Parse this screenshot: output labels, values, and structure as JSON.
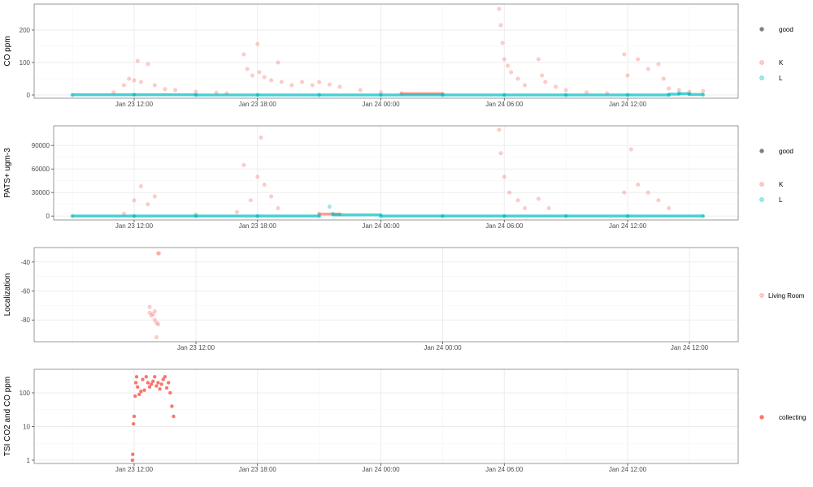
{
  "chart_data": [
    {
      "type": "scatter",
      "ylabel": "CO ppm",
      "x_ticks": [
        "Jan 23 12:00",
        "Jan 23 18:00",
        "Jan 24 00:00",
        "Jan 24 06:00",
        "Jan 24 12:00"
      ],
      "y_ticks": [
        "0",
        "100",
        "200"
      ],
      "ylim": [
        -10,
        280
      ],
      "legend": [
        {
          "label": "good",
          "color": "#7f7f7f"
        },
        {
          "label": "K",
          "color": "#F8766D"
        },
        {
          "label": "L",
          "color": "#00BFC4"
        }
      ],
      "series": [
        {
          "name": "K",
          "color": "#F8766D",
          "points": [
            [
              "Jan 23 11:00",
              8
            ],
            [
              "Jan 23 11:30",
              30
            ],
            [
              "Jan 23 11:45",
              50
            ],
            [
              "Jan 23 12:00",
              45
            ],
            [
              "Jan 23 12:10",
              105
            ],
            [
              "Jan 23 12:20",
              40
            ],
            [
              "Jan 23 12:40",
              95
            ],
            [
              "Jan 23 13:00",
              30
            ],
            [
              "Jan 23 13:30",
              18
            ],
            [
              "Jan 23 14:00",
              15
            ],
            [
              "Jan 23 15:00",
              10
            ],
            [
              "Jan 23 16:00",
              7
            ],
            [
              "Jan 23 16:30",
              5
            ],
            [
              "Jan 23 17:20",
              125
            ],
            [
              "Jan 23 17:30",
              80
            ],
            [
              "Jan 23 17:45",
              60
            ],
            [
              "Jan 23 18:00",
              157
            ],
            [
              "Jan 23 18:05",
              70
            ],
            [
              "Jan 23 18:20",
              55
            ],
            [
              "Jan 23 18:40",
              45
            ],
            [
              "Jan 23 19:00",
              100
            ],
            [
              "Jan 23 19:10",
              40
            ],
            [
              "Jan 23 19:40",
              30
            ],
            [
              "Jan 23 20:10",
              40
            ],
            [
              "Jan 23 20:40",
              30
            ],
            [
              "Jan 23 21:00",
              40
            ],
            [
              "Jan 23 21:30",
              32
            ],
            [
              "Jan 23 22:00",
              25
            ],
            [
              "Jan 23 23:00",
              15
            ],
            [
              "Jan 24 00:00",
              8
            ],
            [
              "Jan 24 01:00",
              5
            ],
            [
              "Jan 24 03:00",
              3
            ],
            [
              "Jan 24 05:45",
              265
            ],
            [
              "Jan 24 05:50",
              215
            ],
            [
              "Jan 24 05:55",
              160
            ],
            [
              "Jan 24 06:00",
              110
            ],
            [
              "Jan 24 06:10",
              90
            ],
            [
              "Jan 24 06:20",
              70
            ],
            [
              "Jan 24 06:40",
              50
            ],
            [
              "Jan 24 07:00",
              30
            ],
            [
              "Jan 24 07:40",
              110
            ],
            [
              "Jan 24 07:50",
              60
            ],
            [
              "Jan 24 08:00",
              40
            ],
            [
              "Jan 24 08:30",
              25
            ],
            [
              "Jan 24 09:00",
              15
            ],
            [
              "Jan 24 10:00",
              8
            ],
            [
              "Jan 24 11:00",
              5
            ],
            [
              "Jan 24 11:50",
              125
            ],
            [
              "Jan 24 12:00",
              60
            ],
            [
              "Jan 24 12:30",
              110
            ],
            [
              "Jan 24 13:00",
              80
            ],
            [
              "Jan 24 13:30",
              95
            ],
            [
              "Jan 24 13:45",
              50
            ],
            [
              "Jan 24 14:00",
              20
            ],
            [
              "Jan 24 14:30",
              15
            ],
            [
              "Jan 24 15:00",
              10
            ],
            [
              "Jan 24 15:40",
              12
            ]
          ]
        },
        {
          "name": "L",
          "color": "#00BFC4",
          "points": [
            [
              "Jan 23 09:00",
              0
            ],
            [
              "Jan 23 12:00",
              1
            ],
            [
              "Jan 23 15:00",
              0
            ],
            [
              "Jan 23 18:00",
              0
            ],
            [
              "Jan 23 21:00",
              0
            ],
            [
              "Jan 24 00:00",
              0
            ],
            [
              "Jan 24 03:00",
              0
            ],
            [
              "Jan 24 06:00",
              0
            ],
            [
              "Jan 24 09:00",
              0
            ],
            [
              "Jan 24 12:00",
              0
            ],
            [
              "Jan 24 14:00",
              0
            ],
            [
              "Jan 24 14:30",
              5
            ],
            [
              "Jan 24 15:00",
              3
            ],
            [
              "Jan 24 15:40",
              0
            ]
          ]
        }
      ]
    },
    {
      "type": "scatter",
      "ylabel": "PATS+ ugm-3",
      "x_ticks": [
        "Jan 23 12:00",
        "Jan 23 18:00",
        "Jan 24 00:00",
        "Jan 24 06:00",
        "Jan 24 12:00"
      ],
      "y_ticks": [
        "0",
        "30000",
        "60000",
        "90000"
      ],
      "ylim": [
        -5000,
        115000
      ],
      "legend": [
        {
          "label": "good",
          "color": "#7f7f7f"
        },
        {
          "label": "K",
          "color": "#F8766D"
        },
        {
          "label": "L",
          "color": "#00BFC4"
        }
      ],
      "series": [
        {
          "name": "K",
          "color": "#F8766D",
          "points": [
            [
              "Jan 23 11:30",
              3000
            ],
            [
              "Jan 23 12:00",
              20000
            ],
            [
              "Jan 23 12:20",
              38000
            ],
            [
              "Jan 23 12:40",
              15000
            ],
            [
              "Jan 23 13:00",
              25000
            ],
            [
              "Jan 23 15:00",
              2000
            ],
            [
              "Jan 23 17:00",
              5000
            ],
            [
              "Jan 23 17:20",
              65000
            ],
            [
              "Jan 23 17:40",
              20000
            ],
            [
              "Jan 23 18:00",
              50000
            ],
            [
              "Jan 23 18:10",
              100000
            ],
            [
              "Jan 23 18:20",
              40000
            ],
            [
              "Jan 23 18:40",
              25000
            ],
            [
              "Jan 23 19:00",
              10000
            ],
            [
              "Jan 23 21:00",
              3000
            ],
            [
              "Jan 23 22:00",
              2000
            ],
            [
              "Jan 24 05:45",
              110000
            ],
            [
              "Jan 24 05:50",
              80000
            ],
            [
              "Jan 24 06:00",
              50000
            ],
            [
              "Jan 24 06:15",
              30000
            ],
            [
              "Jan 24 06:40",
              20000
            ],
            [
              "Jan 24 07:00",
              10000
            ],
            [
              "Jan 24 07:40",
              22000
            ],
            [
              "Jan 24 08:10",
              10000
            ],
            [
              "Jan 24 11:50",
              30000
            ],
            [
              "Jan 24 12:10",
              85000
            ],
            [
              "Jan 24 12:30",
              40000
            ],
            [
              "Jan 24 13:00",
              30000
            ],
            [
              "Jan 24 13:30",
              20000
            ],
            [
              "Jan 24 14:00",
              10000
            ]
          ]
        },
        {
          "name": "L",
          "color": "#00BFC4",
          "points": [
            [
              "Jan 23 09:00",
              0
            ],
            [
              "Jan 23 12:00",
              0
            ],
            [
              "Jan 23 15:00",
              0
            ],
            [
              "Jan 23 18:00",
              0
            ],
            [
              "Jan 23 21:00",
              0
            ],
            [
              "Jan 23 21:30",
              12000
            ],
            [
              "Jan 23 21:40",
              3000
            ],
            [
              "Jan 24 00:00",
              0
            ],
            [
              "Jan 24 03:00",
              0
            ],
            [
              "Jan 24 06:00",
              0
            ],
            [
              "Jan 24 09:00",
              0
            ],
            [
              "Jan 24 12:00",
              0
            ],
            [
              "Jan 24 15:40",
              0
            ]
          ]
        }
      ]
    },
    {
      "type": "scatter",
      "ylabel": "Localization",
      "x_ticks": [
        "Jan 23 12:00",
        "Jan 24 00:00",
        "Jan 24 12:00"
      ],
      "y_ticks": [
        "-40",
        "-60",
        "-80"
      ],
      "ylim": [
        -95,
        -30
      ],
      "legend": [
        {
          "label": "Living Room",
          "color": "#F8766D"
        }
      ],
      "series": [
        {
          "name": "Living Room",
          "color": "#F8766D",
          "points": [
            [
              "Jan 23 09:45",
              -71
            ],
            [
              "Jan 23 09:45",
              -75
            ],
            [
              "Jan 23 09:50",
              -77
            ],
            [
              "Jan 23 09:55",
              -76
            ],
            [
              "Jan 23 10:00",
              -74
            ],
            [
              "Jan 23 10:00",
              -80
            ],
            [
              "Jan 23 10:05",
              -82
            ],
            [
              "Jan 23 10:05",
              -92
            ],
            [
              "Jan 23 10:10",
              -83
            ],
            [
              "Jan 23 10:10",
              -34
            ],
            [
              "Jan 23 10:12",
              -34
            ]
          ]
        }
      ]
    },
    {
      "type": "scatter",
      "ylabel": "TSI CO2 and CO ppm",
      "x_ticks": [
        "Jan 23 12:00",
        "Jan 23 18:00",
        "Jan 24 00:00",
        "Jan 24 06:00",
        "Jan 24 12:00"
      ],
      "y_ticks": [
        "1",
        "10",
        "100"
      ],
      "y_scale": "log",
      "ylim": [
        0.8,
        500
      ],
      "legend": [
        {
          "label": "collecting",
          "color": "#F8766D"
        }
      ],
      "series": [
        {
          "name": "collecting",
          "color": "#F8766D",
          "points": [
            [
              "Jan 23 11:55",
              1
            ],
            [
              "Jan 23 11:56",
              1.5
            ],
            [
              "Jan 23 11:58",
              12
            ],
            [
              "Jan 23 12:00",
              20
            ],
            [
              "Jan 23 12:03",
              80
            ],
            [
              "Jan 23 12:05",
              200
            ],
            [
              "Jan 23 12:07",
              300
            ],
            [
              "Jan 23 12:10",
              150
            ],
            [
              "Jan 23 12:15",
              90
            ],
            [
              "Jan 23 12:20",
              110
            ],
            [
              "Jan 23 12:25",
              250
            ],
            [
              "Jan 23 12:30",
              120
            ],
            [
              "Jan 23 12:35",
              300
            ],
            [
              "Jan 23 12:40",
              200
            ],
            [
              "Jan 23 12:45",
              150
            ],
            [
              "Jan 23 12:50",
              180
            ],
            [
              "Jan 23 12:55",
              220
            ],
            [
              "Jan 23 13:00",
              300
            ],
            [
              "Jan 23 13:05",
              160
            ],
            [
              "Jan 23 13:10",
              200
            ],
            [
              "Jan 23 13:15",
              130
            ],
            [
              "Jan 23 13:20",
              180
            ],
            [
              "Jan 23 13:25",
              250
            ],
            [
              "Jan 23 13:30",
              300
            ],
            [
              "Jan 23 13:35",
              140
            ],
            [
              "Jan 23 13:40",
              200
            ],
            [
              "Jan 23 13:45",
              100
            ],
            [
              "Jan 23 13:50",
              40
            ],
            [
              "Jan 23 13:55",
              20
            ]
          ]
        }
      ]
    }
  ]
}
